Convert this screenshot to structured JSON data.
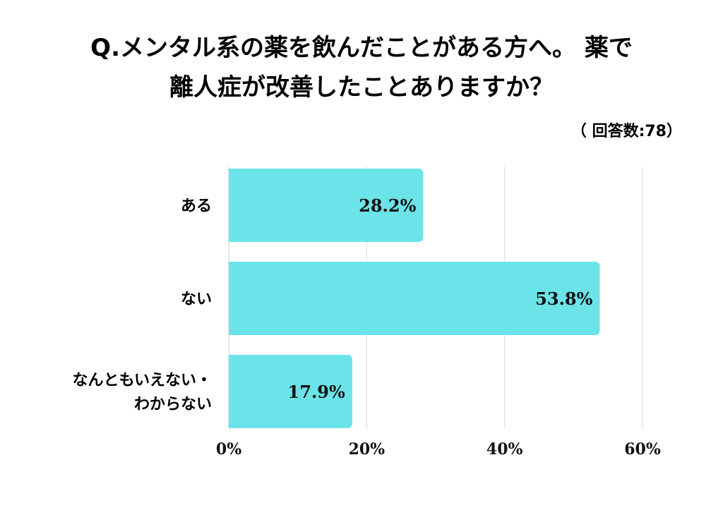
{
  "title_line1": "Q.メンタル系の薬を飲んだことがある方へ。 薬で",
  "title_line2": "離人症が改善したことありますか？",
  "respondents": "（ 回答数:78）",
  "colors": {
    "bar": "#6BE4E9",
    "grid": "#dddddd",
    "axis": "#cccccc"
  },
  "chart_data": {
    "type": "bar",
    "orientation": "horizontal",
    "title": "Q.メンタル系の薬を飲んだことがある方へ。 薬で離人症が改善したことありますか？",
    "categories": [
      [
        "ある"
      ],
      [
        "ない"
      ],
      [
        "なんともいえない・",
        "わからない"
      ]
    ],
    "values": [
      28.2,
      53.8,
      17.9
    ],
    "value_labels": [
      "28.2%",
      "53.8%",
      "17.9%"
    ],
    "xlim": [
      0,
      60
    ],
    "xticks": [
      0,
      20,
      40,
      60
    ],
    "xtick_labels": [
      "0%",
      "20%",
      "40%",
      "60%"
    ],
    "grid": true,
    "legend": "none"
  }
}
